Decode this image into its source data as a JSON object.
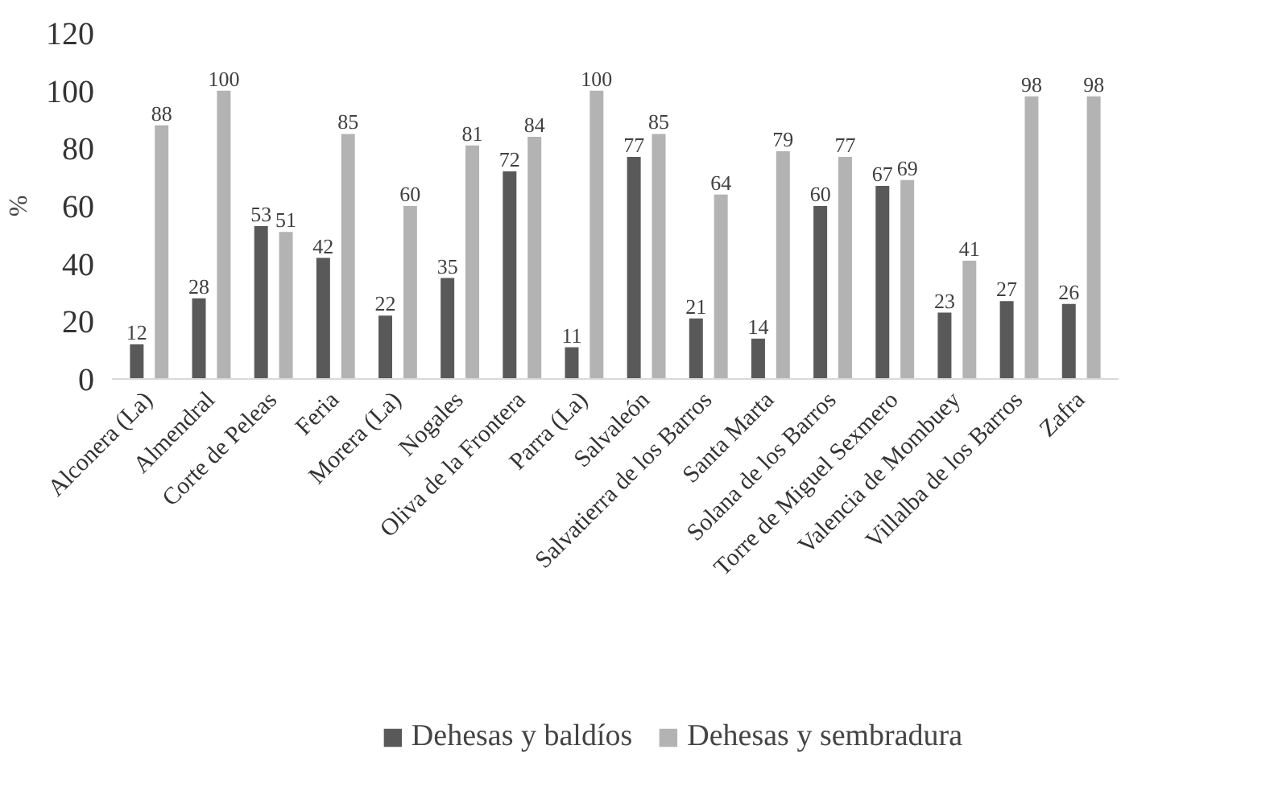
{
  "chart_data": {
    "type": "bar",
    "ylabel": "%",
    "categories": [
      "Alconera (La)",
      "Almendral",
      "Corte de Peleas",
      "Feria",
      "Morera (La)",
      "Nogales",
      "Oliva de la Frontera",
      "Parra (La)",
      "Salvaleón",
      "Salvatierra de los Barros",
      "Santa Marta",
      "Solana de los Barros",
      "Torre de Miguel Sexmero",
      "Valencia de Mombuey",
      "Villalba de los Barros",
      "Zafra"
    ],
    "series": [
      {
        "name": "Dehesas y baldíos",
        "color": "#595959",
        "values": [
          12,
          28,
          53,
          42,
          22,
          35,
          72,
          11,
          77,
          21,
          14,
          60,
          67,
          23,
          27,
          26
        ]
      },
      {
        "name": "Dehesas y sembradura",
        "color": "#b3b3b3",
        "values": [
          88,
          100,
          51,
          85,
          60,
          81,
          84,
          100,
          85,
          64,
          79,
          77,
          69,
          41,
          98,
          98
        ]
      }
    ],
    "ylim": [
      0,
      120
    ],
    "yticks": [
      0,
      20,
      40,
      60,
      80,
      100,
      120
    ],
    "data_labels": true,
    "grid": false,
    "legend": "bottom"
  }
}
